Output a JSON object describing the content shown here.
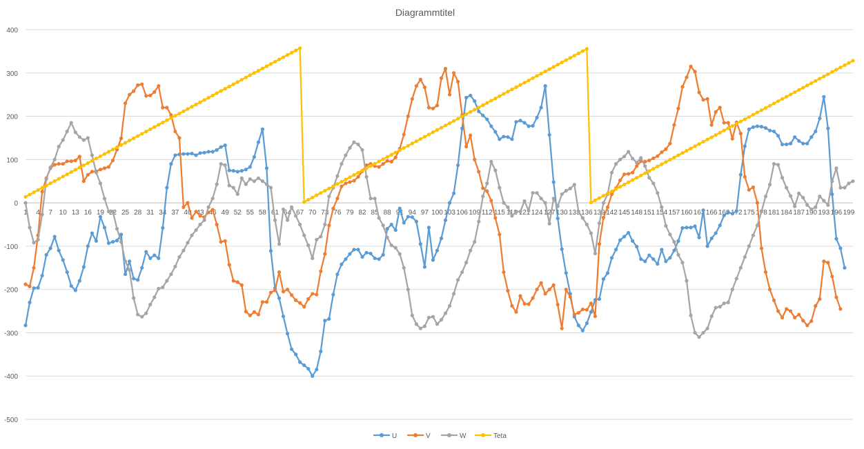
{
  "chart_data": {
    "type": "line",
    "title": "Diagrammtitel",
    "ylim": [
      -500,
      400
    ],
    "yticks": [
      400,
      300,
      200,
      100,
      0,
      -100,
      -200,
      -300,
      -400,
      -500
    ],
    "x_start": 1,
    "x_end": 200,
    "xtick_step": 3,
    "grid": true,
    "legend_position": "bottom",
    "colors": {
      "U": "#5b9bd5",
      "V": "#ed7d31",
      "W": "#a5a5a5",
      "Teta": "#ffc000",
      "grid": "#d9d9d9",
      "axis": "#bfbfbf",
      "text": "#595959"
    },
    "series": [
      {
        "name": "U",
        "color": "#5b9bd5",
        "values": [
          -283,
          -230,
          -197,
          -196,
          -168,
          -120,
          -105,
          -78,
          -110,
          -132,
          -160,
          -192,
          -202,
          -180,
          -148,
          -100,
          -70,
          -88,
          -32,
          -57,
          -93,
          -90,
          -87,
          -73,
          -165,
          -135,
          -175,
          -178,
          -150,
          -113,
          -128,
          -121,
          -128,
          -58,
          35,
          90,
          110,
          112,
          113,
          113,
          114,
          110,
          115,
          116,
          118,
          118,
          122,
          129,
          133,
          75,
          74,
          72,
          74,
          77,
          83,
          106,
          140,
          170,
          80,
          -111,
          -197,
          -220,
          -262,
          -302,
          -338,
          -350,
          -368,
          -375,
          -383,
          -400,
          -385,
          -343,
          -272,
          -268,
          -212,
          -165,
          -142,
          -130,
          -118,
          -108,
          -108,
          -125,
          -115,
          -117,
          -128,
          -130,
          -120,
          -60,
          -50,
          -63,
          -13,
          -46,
          -32,
          -33,
          -43,
          -95,
          -148,
          -57,
          -132,
          -110,
          -82,
          -40,
          0,
          22,
          87,
          172,
          243,
          248,
          235,
          211,
          202,
          193,
          177,
          164,
          147,
          153,
          152,
          147,
          187,
          190,
          185,
          177,
          178,
          197,
          220,
          270,
          157,
          48,
          -36,
          -107,
          -162,
          -210,
          -263,
          -283,
          -295,
          -278,
          -252,
          -224,
          -222,
          -176,
          -162,
          -127,
          -108,
          -86,
          -78,
          -69,
          -88,
          -101,
          -130,
          -135,
          -121,
          -130,
          -141,
          -108,
          -135,
          -127,
          -110,
          -88,
          -58,
          -57,
          -57,
          -54,
          -80,
          -17,
          -100,
          -82,
          -70,
          -52,
          -29,
          -22,
          -25,
          -19,
          65,
          131,
          170,
          175,
          177,
          176,
          173,
          167,
          165,
          155,
          135,
          135,
          137,
          152,
          143,
          137,
          137,
          152,
          165,
          195,
          245,
          172,
          20,
          -83,
          -105,
          -150
        ]
      },
      {
        "name": "V",
        "color": "#ed7d31",
        "values": [
          -188,
          -193,
          -150,
          -75,
          26,
          57,
          80,
          88,
          90,
          90,
          96,
          96,
          98,
          107,
          50,
          65,
          72,
          73,
          77,
          80,
          83,
          98,
          123,
          149,
          230,
          250,
          258,
          272,
          274,
          247,
          248,
          256,
          270,
          220,
          220,
          203,
          165,
          150,
          -10,
          0,
          -35,
          -20,
          -30,
          -33,
          -22,
          -16,
          -50,
          -90,
          -88,
          -143,
          -180,
          -183,
          -190,
          -251,
          -260,
          -252,
          -258,
          -229,
          -229,
          -207,
          -202,
          -160,
          -205,
          -200,
          -213,
          -225,
          -231,
          -240,
          -222,
          -210,
          -212,
          -158,
          -118,
          -52,
          -13,
          10,
          38,
          45,
          48,
          51,
          60,
          73,
          87,
          90,
          85,
          83,
          90,
          97,
          95,
          105,
          125,
          158,
          200,
          240,
          270,
          285,
          267,
          220,
          218,
          225,
          288,
          310,
          250,
          300,
          280,
          203,
          130,
          156,
          100,
          72,
          34,
          27,
          5,
          -35,
          -73,
          -160,
          -203,
          -238,
          -252,
          -215,
          -233,
          -234,
          -220,
          -200,
          -185,
          -210,
          -200,
          -190,
          -235,
          -290,
          -200,
          -217,
          -258,
          -254,
          -246,
          -247,
          -232,
          -262,
          -95,
          -34,
          -10,
          20,
          34,
          52,
          66,
          67,
          70,
          85,
          96,
          95,
          98,
          103,
          108,
          117,
          124,
          137,
          180,
          218,
          268,
          290,
          315,
          303,
          255,
          238,
          240,
          180,
          210,
          220,
          185,
          185,
          148,
          186,
          160,
          60,
          30,
          36,
          0,
          -105,
          -160,
          -200,
          -225,
          -250,
          -265,
          -245,
          -250,
          -265,
          -258,
          -272,
          -283,
          -273,
          -238,
          -222,
          -135,
          -138,
          -170,
          -218,
          -245
        ]
      },
      {
        "name": "W",
        "color": "#a5a5a5",
        "values": [
          0,
          -57,
          -92,
          -85,
          -27,
          55,
          82,
          100,
          130,
          145,
          165,
          185,
          163,
          152,
          145,
          150,
          110,
          70,
          45,
          10,
          -20,
          -20,
          -60,
          -90,
          -135,
          -155,
          -220,
          -258,
          -263,
          -255,
          -235,
          -218,
          -198,
          -195,
          -180,
          -165,
          -147,
          -125,
          -110,
          -92,
          -75,
          -63,
          -50,
          -40,
          -10,
          10,
          43,
          90,
          87,
          40,
          35,
          20,
          57,
          43,
          55,
          50,
          57,
          50,
          43,
          35,
          -40,
          -95,
          -15,
          -40,
          -10,
          -30,
          -50,
          -75,
          -98,
          -128,
          -85,
          -78,
          -50,
          15,
          35,
          62,
          90,
          110,
          127,
          140,
          135,
          122,
          60,
          10,
          10,
          -35,
          -52,
          -80,
          -98,
          -104,
          -118,
          -150,
          -200,
          -260,
          -280,
          -290,
          -285,
          -265,
          -263,
          -280,
          -270,
          -255,
          -238,
          -210,
          -178,
          -160,
          -138,
          -110,
          -90,
          -43,
          15,
          45,
          95,
          75,
          35,
          0,
          -10,
          -30,
          -20,
          -20,
          4,
          -18,
          23,
          23,
          10,
          0,
          -48,
          10,
          -8,
          20,
          28,
          33,
          42,
          -20,
          -35,
          -50,
          -70,
          -117,
          -47,
          0,
          20,
          70,
          90,
          100,
          107,
          118,
          102,
          93,
          104,
          85,
          58,
          45,
          23,
          -10,
          -53,
          -73,
          -90,
          -120,
          -138,
          -180,
          -260,
          -300,
          -310,
          -300,
          -290,
          -262,
          -242,
          -240,
          -232,
          -230,
          -200,
          -175,
          -150,
          -125,
          -100,
          -75,
          -52,
          -20,
          15,
          42,
          90,
          88,
          58,
          35,
          16,
          -8,
          22,
          12,
          -5,
          -15,
          -10,
          15,
          5,
          -5,
          50,
          80,
          35,
          35,
          45,
          50
        ]
      },
      {
        "name": "Teta",
        "color": "#ffc000",
        "values": [
          14,
          19.2,
          24.4,
          29.6,
          34.8,
          40,
          45.2,
          50.4,
          55.6,
          60.8,
          66,
          71.2,
          76.4,
          81.6,
          86.8,
          92,
          97.2,
          102.4,
          107.6,
          112.8,
          118,
          123.2,
          128.4,
          133.6,
          138.8,
          144,
          149.2,
          154.4,
          159.6,
          164.8,
          170,
          175.2,
          180.4,
          185.6,
          190.8,
          196,
          201.2,
          206.4,
          211.6,
          216.8,
          222,
          227.2,
          232.4,
          237.6,
          242.8,
          248,
          253.2,
          258.4,
          263.6,
          268.8,
          274,
          279.2,
          284.4,
          289.6,
          294.8,
          300,
          305.2,
          310.4,
          315.6,
          320.8,
          326,
          331.2,
          336.4,
          341.6,
          346.8,
          352,
          357.2,
          2,
          7.2,
          12.4,
          17.6,
          22.8,
          28,
          33.2,
          38.4,
          43.6,
          48.8,
          54,
          59.2,
          64.4,
          69.6,
          74.8,
          80,
          85.2,
          90.4,
          95.6,
          100.8,
          106,
          111.2,
          116.4,
          121.6,
          126.8,
          132,
          137.2,
          142.4,
          147.6,
          152.8,
          158,
          163.2,
          168.4,
          173.6,
          178.8,
          184,
          189.2,
          194.4,
          199.6,
          204.8,
          210,
          215.2,
          220.4,
          225.6,
          230.8,
          236,
          241.2,
          246.4,
          251.6,
          256.8,
          262,
          267.2,
          272.4,
          277.6,
          282.8,
          288,
          293.2,
          298.4,
          303.6,
          308.8,
          314,
          319.2,
          324.4,
          329.6,
          334.8,
          340,
          345.2,
          350.4,
          355.6,
          0.8,
          6,
          11.2,
          16.4,
          21.6,
          26.8,
          32,
          37.2,
          42.4,
          47.6,
          52.8,
          58,
          63.2,
          68.4,
          73.6,
          78.8,
          84,
          89.2,
          94.4,
          99.6,
          104.8,
          110,
          115.2,
          120.4,
          125.6,
          130.8,
          136,
          141.2,
          146.4,
          151.6,
          156.8,
          162,
          167.2,
          172.4,
          177.6,
          182.8,
          188,
          193.2,
          198.4,
          203.6,
          208.8,
          214,
          219.2,
          224.4,
          229.6,
          234.8,
          240,
          245.2,
          250.4,
          255.6,
          260.8,
          266,
          271.2,
          276.4,
          281.6,
          286.8,
          292,
          297.2,
          302.4,
          307.6,
          312.8,
          318,
          323.2,
          328.4
        ]
      }
    ]
  }
}
